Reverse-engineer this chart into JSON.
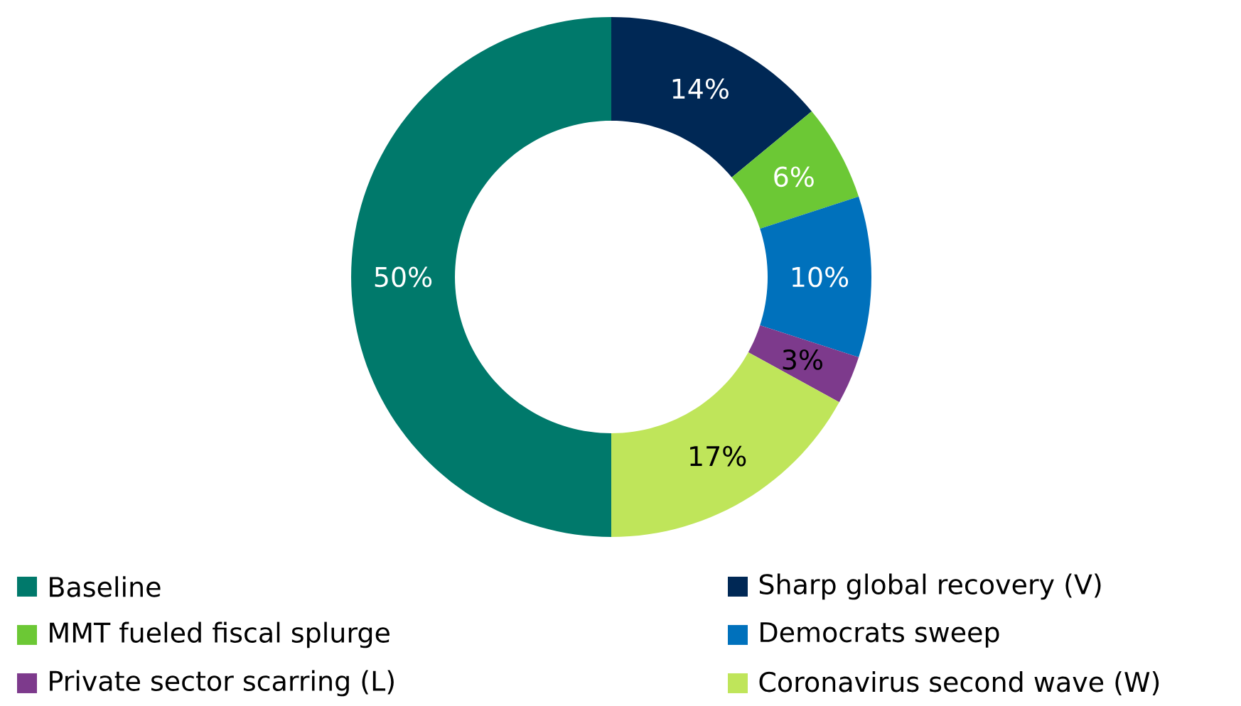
{
  "chart_data": {
    "type": "donut",
    "categories": [
      "Baseline",
      "Sharp global recovery (V)",
      "MMT fueled fiscal splurge",
      "Democrats sweep",
      "Private sector scarring (L)",
      "Coronavirus second wave (W)"
    ],
    "values": [
      50,
      14,
      6,
      10,
      3,
      17
    ],
    "value_labels": [
      "50%",
      "14%",
      "6%",
      "10%",
      "3%",
      "17%"
    ],
    "colors": [
      "#00796b",
      "#002855",
      "#6cc835",
      "#0071bc",
      "#7d3a8c",
      "#bfe55a"
    ],
    "legend": "bottom"
  }
}
